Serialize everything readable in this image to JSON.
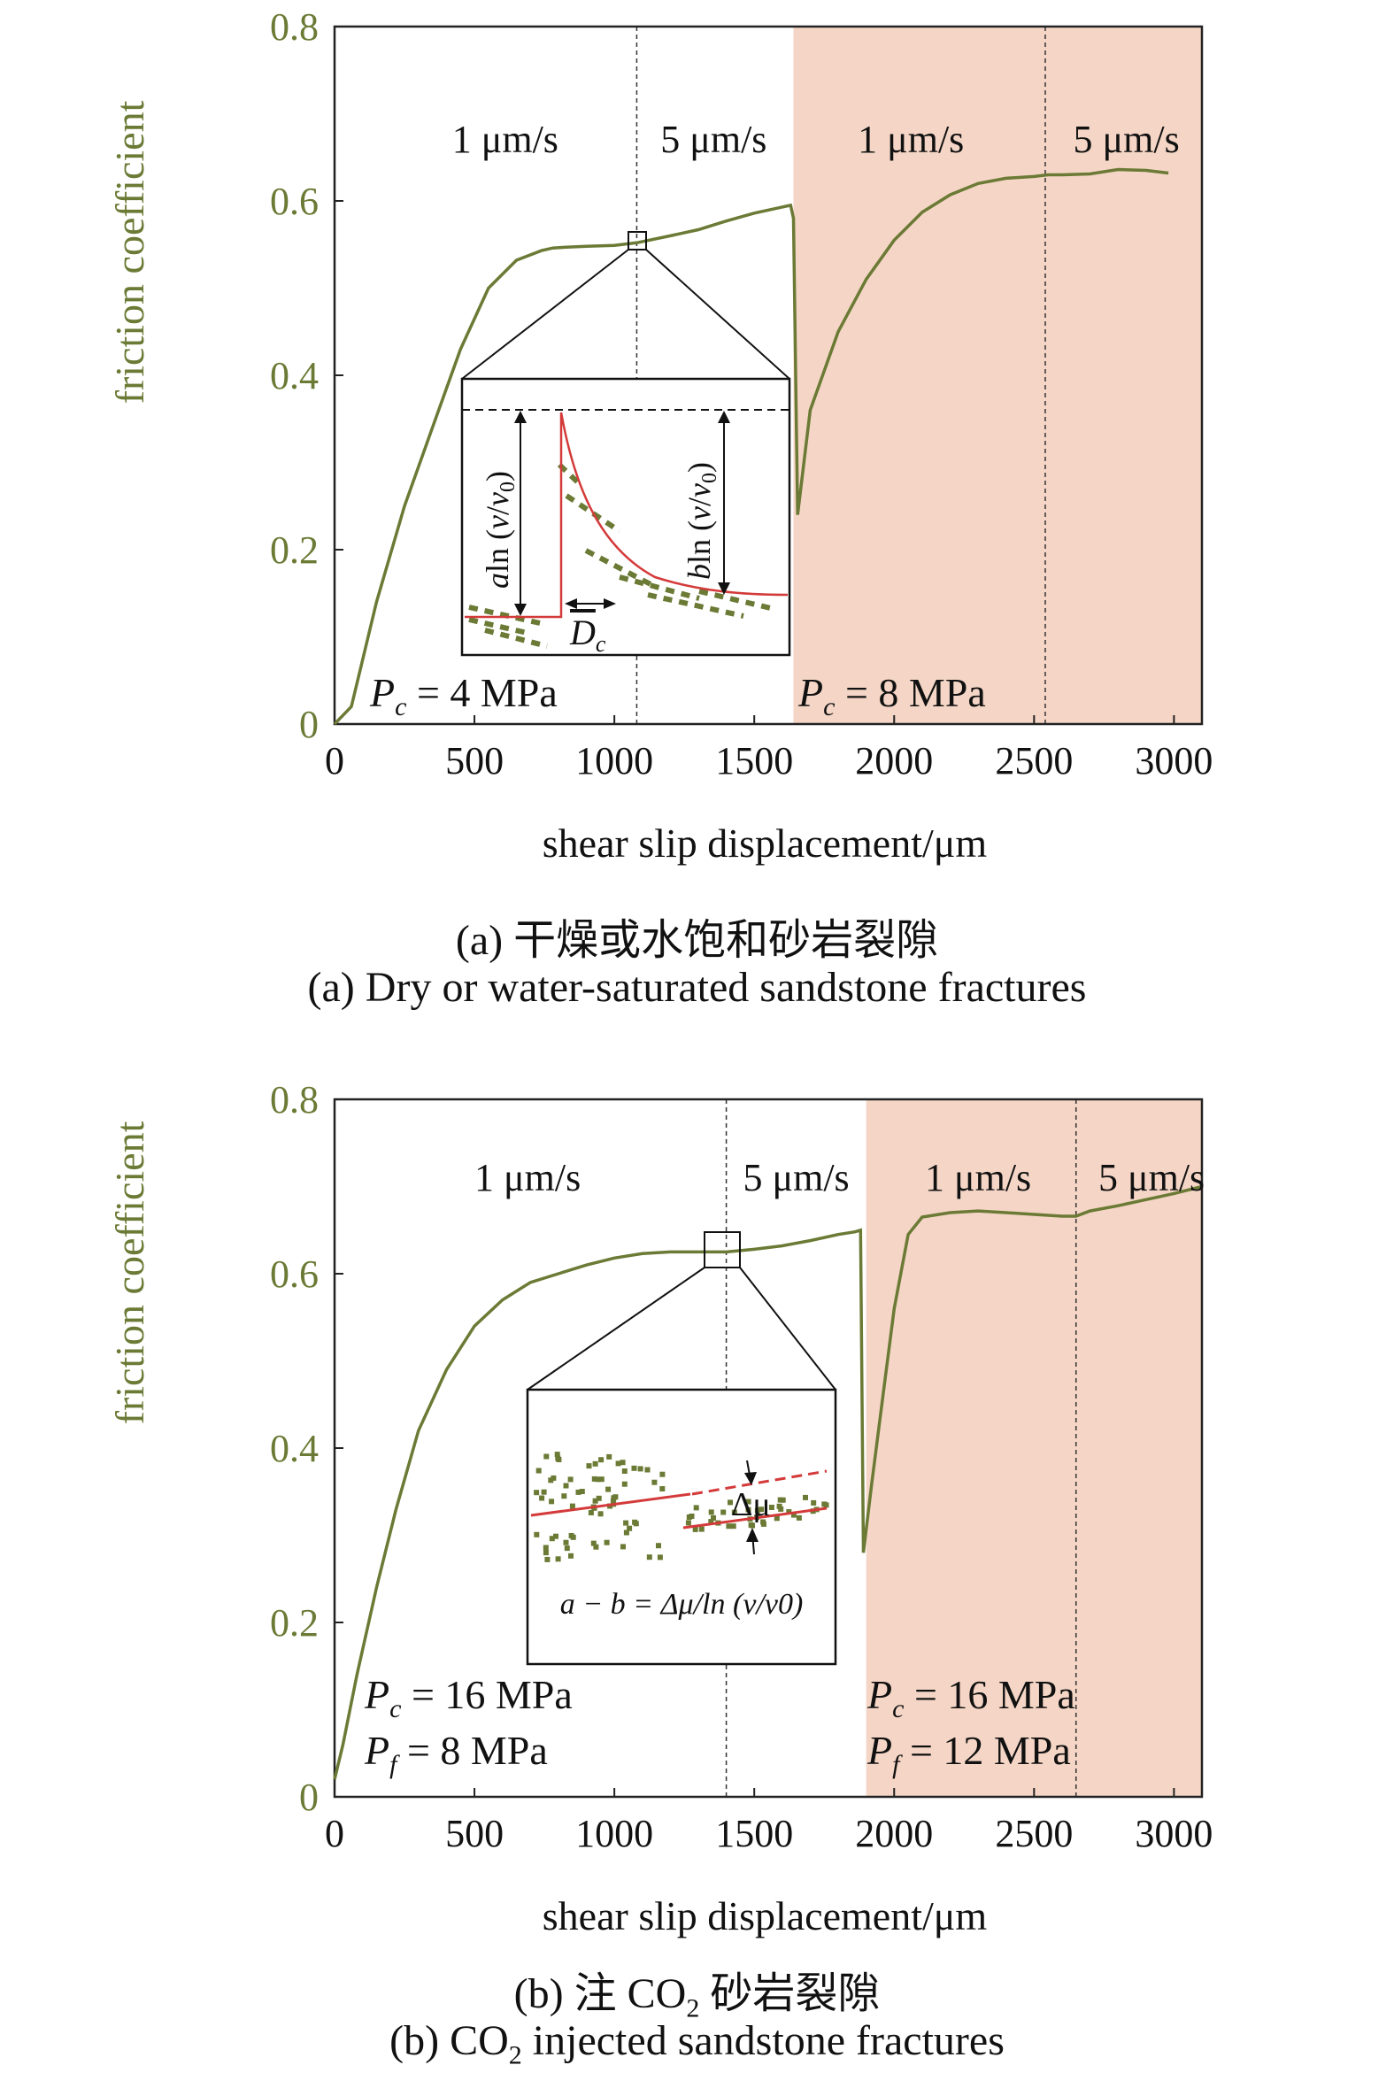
{
  "figure": {
    "accent_color": "#6b7a35",
    "shade_color": "#f5d6c6",
    "fit_color": "#d43a3a"
  },
  "chart_data": [
    {
      "type": "line",
      "ylabel": "friction coefficient",
      "xlabel": "shear slip displacement/μm",
      "ylim": [
        0,
        0.8
      ],
      "xlim": [
        0,
        3100
      ],
      "yticks": [
        "0",
        "0.2",
        "0.4",
        "0.6",
        "0.8"
      ],
      "xticks": [
        "0",
        "500",
        "1000",
        "1500",
        "2000",
        "2500",
        "3000"
      ],
      "grid": false,
      "shaded_region": {
        "x_start": 1640,
        "x_end": 3100
      },
      "velocity_step_lines": [
        1080,
        2540
      ],
      "velocity_labels": [
        {
          "text": "1 μm/s",
          "x": 610
        },
        {
          "text": "5 μm/s",
          "x": 1355
        },
        {
          "text": "1 μm/s",
          "x": 2060
        },
        {
          "text": "5 μm/s",
          "x": 2830
        }
      ],
      "pressure_labels": [
        {
          "line1": "= 4 MPa",
          "sub1": "c",
          "x": 150
        },
        {
          "line1": "= 8 MPa",
          "sub1": "c",
          "x": 1660
        }
      ],
      "inset": {
        "type": "schematic",
        "labels": {
          "a": "a",
          "b": "b",
          "ln": "ln (",
          "v": "v",
          "slash": "/",
          "v0": "v",
          "sub0": "0",
          "close": ")",
          "Dc": "D",
          "Dc_sub": "c"
        }
      },
      "series": [
        {
          "x": [
            0,
            60,
            150,
            250,
            350,
            450,
            550,
            650,
            740,
            780,
            830,
            900,
            1000,
            1080,
            1200,
            1300,
            1400,
            1500,
            1600,
            1630,
            1640,
            1655,
            1700,
            1800,
            1900,
            2000,
            2100,
            2200,
            2300,
            2400,
            2500,
            2550,
            2600,
            2700,
            2800,
            2900,
            2980
          ],
          "y": [
            0.0,
            0.02,
            0.14,
            0.25,
            0.34,
            0.43,
            0.5,
            0.532,
            0.543,
            0.546,
            0.547,
            0.548,
            0.549,
            0.552,
            0.56,
            0.567,
            0.577,
            0.586,
            0.593,
            0.595,
            0.58,
            0.24,
            0.36,
            0.45,
            0.51,
            0.555,
            0.587,
            0.607,
            0.62,
            0.626,
            0.628,
            0.63,
            0.63,
            0.631,
            0.636,
            0.635,
            0.632
          ]
        }
      ]
    },
    {
      "type": "line",
      "ylabel": "friction coefficient",
      "xlabel": "shear slip displacement/μm",
      "ylim": [
        0,
        0.8
      ],
      "xlim": [
        0,
        3100
      ],
      "yticks": [
        "0",
        "0.2",
        "0.4",
        "0.6",
        "0.8"
      ],
      "xticks": [
        "0",
        "500",
        "1000",
        "1500",
        "2000",
        "2500",
        "3000"
      ],
      "grid": false,
      "shaded_region": {
        "x_start": 1900,
        "x_end": 3100
      },
      "velocity_step_lines": [
        1400,
        2650
      ],
      "velocity_labels": [
        {
          "text": "1 μm/s",
          "x": 690
        },
        {
          "text": "5 μm/s",
          "x": 1650
        },
        {
          "text": "1 μm/s",
          "x": 2300
        },
        {
          "text": "5 μm/s",
          "x": 2920
        }
      ],
      "pressure_labels": [
        {
          "line1": "= 16 MPa",
          "sub1": "c",
          "line2": "= 8 MPa",
          "sub2": "f",
          "x": 130
        },
        {
          "line1": "= 16 MPa",
          "sub1": "c",
          "line2": "= 12 MPa",
          "sub2": "f",
          "x": 1920
        }
      ],
      "inset": {
        "type": "schematic",
        "labels": {
          "delta_mu": "Δμ",
          "formula": "a − b = Δμ/ln (v/v0)"
        }
      },
      "series": [
        {
          "x": [
            0,
            30,
            80,
            150,
            220,
            300,
            400,
            500,
            600,
            700,
            800,
            900,
            1000,
            1100,
            1200,
            1300,
            1400,
            1500,
            1600,
            1700,
            1800,
            1860,
            1880,
            1890,
            1920,
            1960,
            2000,
            2050,
            2100,
            2200,
            2300,
            2400,
            2500,
            2600,
            2650,
            2700,
            2800,
            2900,
            3000,
            3100
          ],
          "y": [
            0.02,
            0.06,
            0.14,
            0.24,
            0.33,
            0.42,
            0.49,
            0.54,
            0.57,
            0.59,
            0.6,
            0.61,
            0.618,
            0.623,
            0.625,
            0.625,
            0.625,
            0.628,
            0.632,
            0.638,
            0.645,
            0.648,
            0.65,
            0.28,
            0.36,
            0.46,
            0.56,
            0.645,
            0.665,
            0.67,
            0.672,
            0.67,
            0.668,
            0.666,
            0.666,
            0.672,
            0.678,
            0.685,
            0.692,
            0.7
          ]
        }
      ]
    }
  ],
  "captions": {
    "a_cn": "(a) 干燥或水饱和砂岩裂隙",
    "a_en": "(a) Dry or water-saturated sandstone fractures",
    "b_cn_pre": "(b) 注 CO",
    "b_cn_sub": "2",
    "b_cn_post": " 砂岩裂隙",
    "b_en_pre": "(b) CO",
    "b_en_sub": "2",
    "b_en_post": " injected sandstone fractures"
  }
}
